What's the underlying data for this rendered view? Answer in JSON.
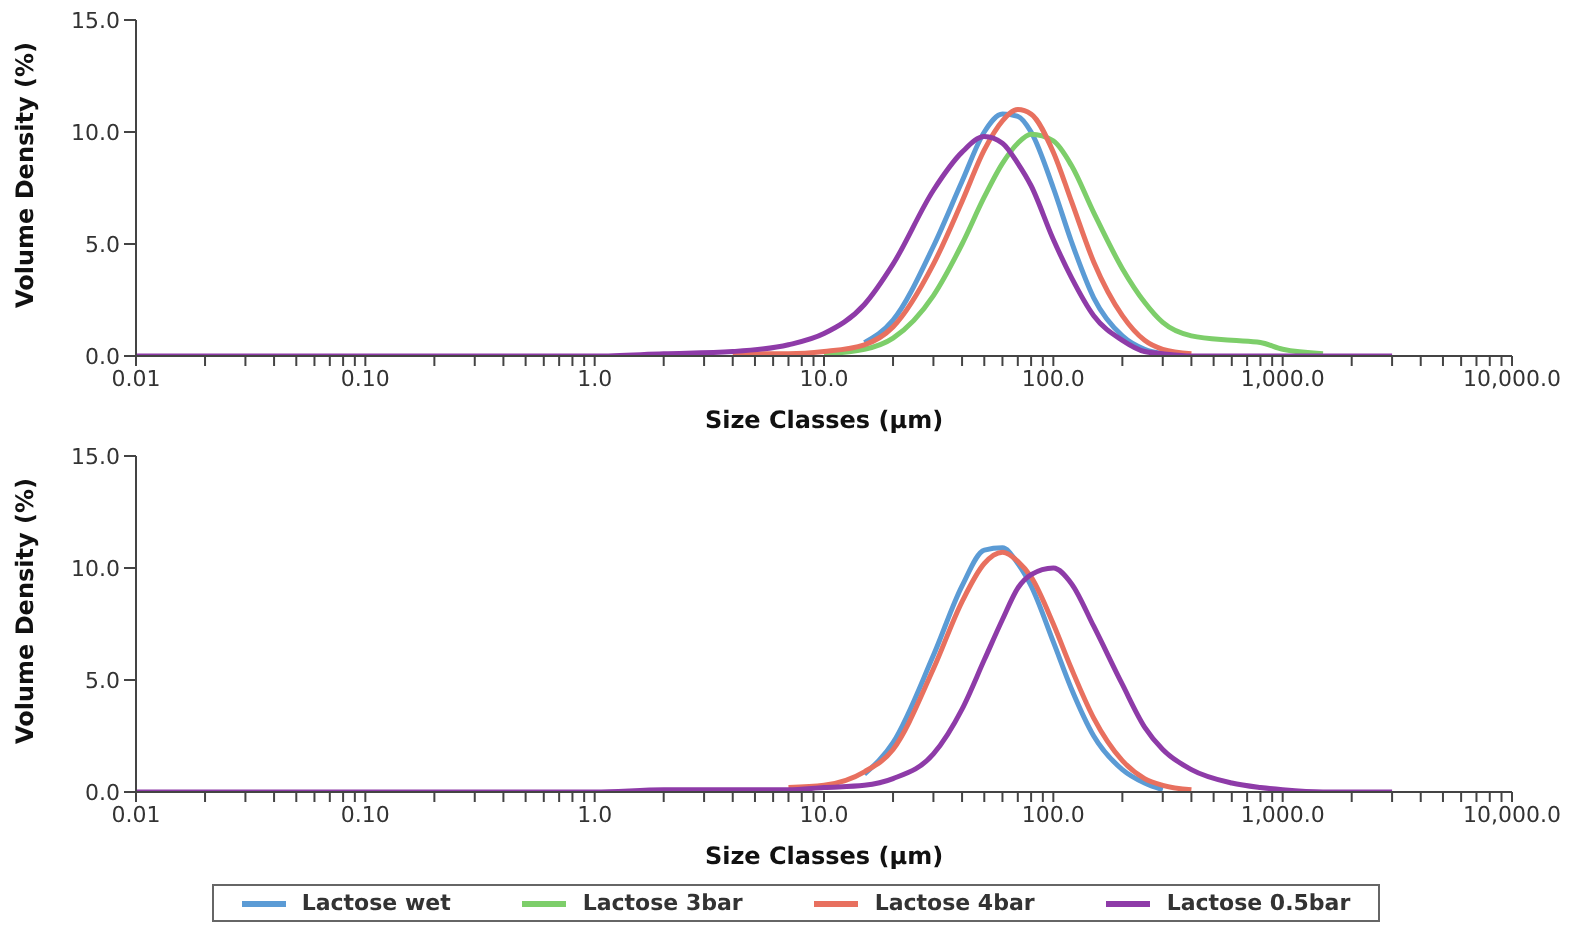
{
  "chart_data": [
    {
      "type": "line",
      "x": [
        0.01,
        0.1,
        1,
        2,
        4,
        7,
        10,
        15,
        20,
        30,
        40,
        50,
        60,
        70,
        80,
        100,
        120,
        150,
        200,
        250,
        300,
        400,
        600,
        800,
        1000,
        1500,
        3000
      ],
      "xlabel": "Size Classes (µm)",
      "ylabel": "Volume Density (%)",
      "log": "x",
      "legend": "bottom",
      "marker": "none",
      "line_style": "solid",
      "grid": false,
      "xlim": [
        0.01,
        10000
      ],
      "ylim": [
        0,
        15
      ],
      "xticks": [
        {
          "value": 0.01,
          "label": "0.01"
        },
        {
          "value": 0.02,
          "label": null
        },
        {
          "value": 0.03,
          "label": null
        },
        {
          "value": 0.04,
          "label": null
        },
        {
          "value": 0.05,
          "label": null
        },
        {
          "value": 0.06,
          "label": null
        },
        {
          "value": 0.07,
          "label": null
        },
        {
          "value": 0.08,
          "label": null
        },
        {
          "value": 0.09,
          "label": null
        },
        {
          "value": 0.1,
          "label": "0.10"
        },
        {
          "value": 0.2,
          "label": null
        },
        {
          "value": 0.3,
          "label": null
        },
        {
          "value": 0.4,
          "label": null
        },
        {
          "value": 0.5,
          "label": null
        },
        {
          "value": 0.6,
          "label": null
        },
        {
          "value": 0.7,
          "label": null
        },
        {
          "value": 0.8,
          "label": null
        },
        {
          "value": 0.9,
          "label": null
        },
        {
          "value": 1,
          "label": "1.0"
        },
        {
          "value": 2,
          "label": null
        },
        {
          "value": 3,
          "label": null
        },
        {
          "value": 4,
          "label": null
        },
        {
          "value": 5,
          "label": null
        },
        {
          "value": 6,
          "label": null
        },
        {
          "value": 7,
          "label": null
        },
        {
          "value": 8,
          "label": null
        },
        {
          "value": 9,
          "label": null
        },
        {
          "value": 10,
          "label": "10.0"
        },
        {
          "value": 20,
          "label": null
        },
        {
          "value": 30,
          "label": null
        },
        {
          "value": 40,
          "label": null
        },
        {
          "value": 50,
          "label": null
        },
        {
          "value": 60,
          "label": null
        },
        {
          "value": 70,
          "label": null
        },
        {
          "value": 80,
          "label": null
        },
        {
          "value": 90,
          "label": null
        },
        {
          "value": 100,
          "label": "100.0"
        },
        {
          "value": 200,
          "label": null
        },
        {
          "value": 300,
          "label": null
        },
        {
          "value": 400,
          "label": null
        },
        {
          "value": 500,
          "label": null
        },
        {
          "value": 600,
          "label": null
        },
        {
          "value": 700,
          "label": null
        },
        {
          "value": 800,
          "label": null
        },
        {
          "value": 900,
          "label": null
        },
        {
          "value": 1000,
          "label": "1,000.0"
        },
        {
          "value": 2000,
          "label": null
        },
        {
          "value": 3000,
          "label": null
        },
        {
          "value": 4000,
          "label": null
        },
        {
          "value": 5000,
          "label": null
        },
        {
          "value": 6000,
          "label": null
        },
        {
          "value": 7000,
          "label": null
        },
        {
          "value": 8000,
          "label": null
        },
        {
          "value": 9000,
          "label": null
        },
        {
          "value": 10000,
          "label": "10,000.0"
        }
      ],
      "yticks": [
        {
          "value": 0,
          "label": "0.0"
        },
        {
          "value": 5,
          "label": "5.0"
        },
        {
          "value": 10,
          "label": "10.0"
        },
        {
          "value": 15,
          "label": "15.0"
        }
      ],
      "series": [
        {
          "name": "Lactose wet",
          "color": "#5b9bd5",
          "values": [
            null,
            null,
            null,
            null,
            null,
            null,
            null,
            0.6,
            1.6,
            4.9,
            7.8,
            10.0,
            10.8,
            10.7,
            10.0,
            7.5,
            5.1,
            2.6,
            0.9,
            0.3,
            0.1,
            null,
            null,
            null,
            null,
            null,
            null
          ]
        },
        {
          "name": "Lactose 3bar",
          "color": "#7dce6a",
          "values": [
            null,
            null,
            null,
            null,
            null,
            null,
            0.1,
            0.3,
            0.8,
            2.7,
            5.0,
            7.1,
            8.6,
            9.5,
            9.9,
            9.6,
            8.5,
            6.4,
            3.9,
            2.4,
            1.5,
            0.9,
            0.7,
            0.6,
            0.3,
            0.1,
            null
          ]
        },
        {
          "name": "Lactose 4bar",
          "color": "#e8705f",
          "values": [
            null,
            null,
            null,
            null,
            0.1,
            0.1,
            0.2,
            0.5,
            1.3,
            4.1,
            6.9,
            9.2,
            10.5,
            11.0,
            10.8,
            9.1,
            6.9,
            4.2,
            1.8,
            0.7,
            0.3,
            0.1,
            null,
            null,
            null,
            null,
            null
          ]
        },
        {
          "name": "Lactose 0.5bar",
          "color": "#8e3ba8",
          "values": [
            0,
            0,
            0,
            0.1,
            0.2,
            0.5,
            1.0,
            2.3,
            4.1,
            7.4,
            9.1,
            9.8,
            9.5,
            8.6,
            7.6,
            5.2,
            3.5,
            1.8,
            0.7,
            0.2,
            0.1,
            0,
            0,
            0,
            0,
            0,
            0
          ]
        }
      ]
    },
    {
      "type": "line",
      "x": [
        0.01,
        0.1,
        1,
        2,
        4,
        7,
        10,
        15,
        20,
        30,
        40,
        50,
        60,
        70,
        80,
        100,
        120,
        150,
        200,
        250,
        300,
        400,
        600,
        800,
        1000,
        1500,
        3000
      ],
      "xlabel": "Size Classes (µm)",
      "ylabel": "Volume Density (%)",
      "log": "x",
      "marker": "none",
      "line_style": "solid",
      "grid": false,
      "xlim": [
        0.01,
        10000
      ],
      "ylim": [
        0,
        15
      ],
      "xticks": [
        {
          "value": 0.01,
          "label": "0.01"
        },
        {
          "value": 0.02,
          "label": null
        },
        {
          "value": 0.03,
          "label": null
        },
        {
          "value": 0.04,
          "label": null
        },
        {
          "value": 0.05,
          "label": null
        },
        {
          "value": 0.06,
          "label": null
        },
        {
          "value": 0.07,
          "label": null
        },
        {
          "value": 0.08,
          "label": null
        },
        {
          "value": 0.09,
          "label": null
        },
        {
          "value": 0.1,
          "label": "0.10"
        },
        {
          "value": 0.2,
          "label": null
        },
        {
          "value": 0.3,
          "label": null
        },
        {
          "value": 0.4,
          "label": null
        },
        {
          "value": 0.5,
          "label": null
        },
        {
          "value": 0.6,
          "label": null
        },
        {
          "value": 0.7,
          "label": null
        },
        {
          "value": 0.8,
          "label": null
        },
        {
          "value": 0.9,
          "label": null
        },
        {
          "value": 1,
          "label": "1.0"
        },
        {
          "value": 2,
          "label": null
        },
        {
          "value": 3,
          "label": null
        },
        {
          "value": 4,
          "label": null
        },
        {
          "value": 5,
          "label": null
        },
        {
          "value": 6,
          "label": null
        },
        {
          "value": 7,
          "label": null
        },
        {
          "value": 8,
          "label": null
        },
        {
          "value": 9,
          "label": null
        },
        {
          "value": 10,
          "label": "10.0"
        },
        {
          "value": 20,
          "label": null
        },
        {
          "value": 30,
          "label": null
        },
        {
          "value": 40,
          "label": null
        },
        {
          "value": 50,
          "label": null
        },
        {
          "value": 60,
          "label": null
        },
        {
          "value": 70,
          "label": null
        },
        {
          "value": 80,
          "label": null
        },
        {
          "value": 90,
          "label": null
        },
        {
          "value": 100,
          "label": "100.0"
        },
        {
          "value": 200,
          "label": null
        },
        {
          "value": 300,
          "label": null
        },
        {
          "value": 400,
          "label": null
        },
        {
          "value": 500,
          "label": null
        },
        {
          "value": 600,
          "label": null
        },
        {
          "value": 700,
          "label": null
        },
        {
          "value": 800,
          "label": null
        },
        {
          "value": 900,
          "label": null
        },
        {
          "value": 1000,
          "label": "1,000.0"
        },
        {
          "value": 2000,
          "label": null
        },
        {
          "value": 3000,
          "label": null
        },
        {
          "value": 4000,
          "label": null
        },
        {
          "value": 5000,
          "label": null
        },
        {
          "value": 6000,
          "label": null
        },
        {
          "value": 7000,
          "label": null
        },
        {
          "value": 8000,
          "label": null
        },
        {
          "value": 9000,
          "label": null
        },
        {
          "value": 10000,
          "label": "10,000.0"
        }
      ],
      "yticks": [
        {
          "value": 0,
          "label": "0.0"
        },
        {
          "value": 5,
          "label": "5.0"
        },
        {
          "value": 10,
          "label": "10.0"
        },
        {
          "value": 15,
          "label": "15.0"
        }
      ],
      "series": [
        {
          "color": "#5b9bd5",
          "values": [
            null,
            null,
            null,
            null,
            null,
            null,
            null,
            0.8,
            2.2,
            6.1,
            9.2,
            10.8,
            10.9,
            10.2,
            9.2,
            6.7,
            4.6,
            2.5,
            1.0,
            0.4,
            0.1,
            null,
            null,
            null,
            null,
            null,
            null
          ]
        },
        {
          "color": "#e8705f",
          "values": [
            null,
            null,
            null,
            null,
            null,
            0.2,
            0.3,
            0.9,
            1.9,
            5.5,
            8.5,
            10.2,
            10.7,
            10.3,
            9.6,
            7.5,
            5.5,
            3.3,
            1.4,
            0.6,
            0.3,
            0.1,
            null,
            null,
            null,
            null,
            null
          ]
        },
        {
          "color": "#8e3ba8",
          "values": [
            0,
            0,
            0,
            0.1,
            0.1,
            0.1,
            0.2,
            0.3,
            0.6,
            1.7,
            3.7,
            5.9,
            7.7,
            9.1,
            9.7,
            10.0,
            9.3,
            7.4,
            4.8,
            2.9,
            1.9,
            1.0,
            0.4,
            0.2,
            0.1,
            0,
            0
          ]
        }
      ]
    }
  ]
}
